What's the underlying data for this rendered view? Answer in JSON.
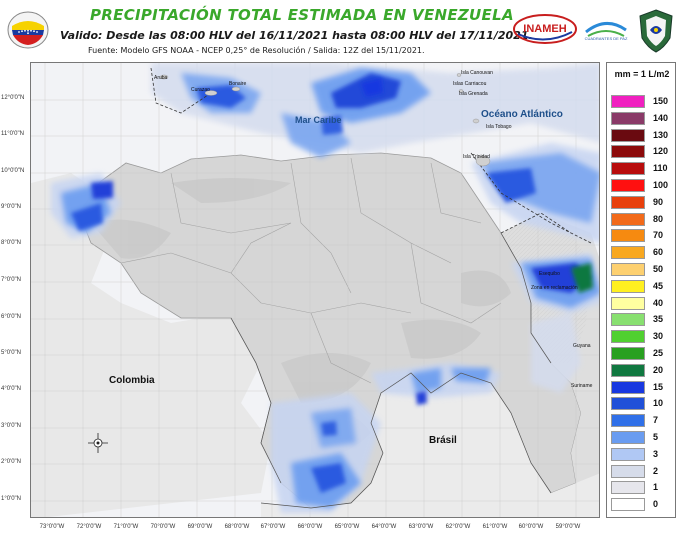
{
  "header": {
    "title": "PRECIPITACIÓN TOTAL ESTIMADA EN VENEZUELA",
    "subtitle": "Valido: Desde las 08:00 HLV del 16/11/2021 hasta 08:00 HLV del 17/11/2021.",
    "source": "Fuente: Modelo GFS NOAA - NCEP 0,25° de Resolución / Salida: 12Z del 15/11/2021."
  },
  "logos": {
    "inameh": "INAMEH",
    "ecosoc_line1": "ECOSOCIALISMO",
    "ecosoc_line2": "CUADRANTES DE PAZ"
  },
  "map": {
    "lat_labels": [
      "12°0'0\"N",
      "11°0'0\"N",
      "10°0'0\"N",
      "9°0'0\"N",
      "8°0'0\"N",
      "7°0'0\"N",
      "6°0'0\"N",
      "5°0'0\"N",
      "4°0'0\"N",
      "3°0'0\"N",
      "2°0'0\"N",
      "1°0'0\"N"
    ],
    "lon_labels": [
      "73°0'0\"W",
      "72°0'0\"W",
      "71°0'0\"W",
      "70°0'0\"W",
      "69°0'0\"W",
      "68°0'0\"W",
      "67°0'0\"W",
      "66°0'0\"W",
      "65°0'0\"W",
      "64°0'0\"W",
      "63°0'0\"W",
      "62°0'0\"W",
      "61°0'0\"W",
      "60°0'0\"W",
      "59°0'0\"W"
    ],
    "places": {
      "aruba": "Aruba",
      "curacao": "Curazao",
      "bonaire": "Bonaire",
      "grenadines": "Isla Canouvan",
      "carriacou": "Islas Carriacou",
      "grenada": "Isla Grenada",
      "tobago": "Isla Tobago",
      "trinidad": "Isla Trinidad",
      "guyana": "Guyana",
      "suriname": "Suriname",
      "esequibo": "Esequibo",
      "esequibo_note": "Zona en reclamación"
    },
    "countries": {
      "colombia": "Colombia",
      "brasil": "Brásil"
    },
    "sea": "Mar Caribe",
    "ocean": "Océano Atlántico"
  },
  "legend": {
    "unit": "mm = 1 L/m2",
    "items": [
      {
        "value": "150",
        "color": "#f020c0"
      },
      {
        "value": "140",
        "color": "#8a3a68"
      },
      {
        "value": "130",
        "color": "#6a0a10"
      },
      {
        "value": "120",
        "color": "#8c0a0a"
      },
      {
        "value": "110",
        "color": "#b80c0c"
      },
      {
        "value": "100",
        "color": "#ff1010"
      },
      {
        "value": "90",
        "color": "#e8400c"
      },
      {
        "value": "80",
        "color": "#f26a1a"
      },
      {
        "value": "70",
        "color": "#f68a10"
      },
      {
        "value": "60",
        "color": "#f8a820"
      },
      {
        "value": "50",
        "color": "#fdd070"
      },
      {
        "value": "45",
        "color": "#fff020"
      },
      {
        "value": "40",
        "color": "#ffffa0"
      },
      {
        "value": "35",
        "color": "#88e070"
      },
      {
        "value": "30",
        "color": "#50d030"
      },
      {
        "value": "25",
        "color": "#28a020"
      },
      {
        "value": "20",
        "color": "#107840"
      },
      {
        "value": "15",
        "color": "#1838e0"
      },
      {
        "value": "10",
        "color": "#2050d8"
      },
      {
        "value": "7",
        "color": "#3070e8"
      },
      {
        "value": "5",
        "color": "#6a9cf0"
      },
      {
        "value": "3",
        "color": "#b0c8f4"
      },
      {
        "value": "2",
        "color": "#d6dcea"
      },
      {
        "value": "1",
        "color": "#e6e6ec"
      },
      {
        "value": "0",
        "color": "#ffffff"
      }
    ]
  }
}
